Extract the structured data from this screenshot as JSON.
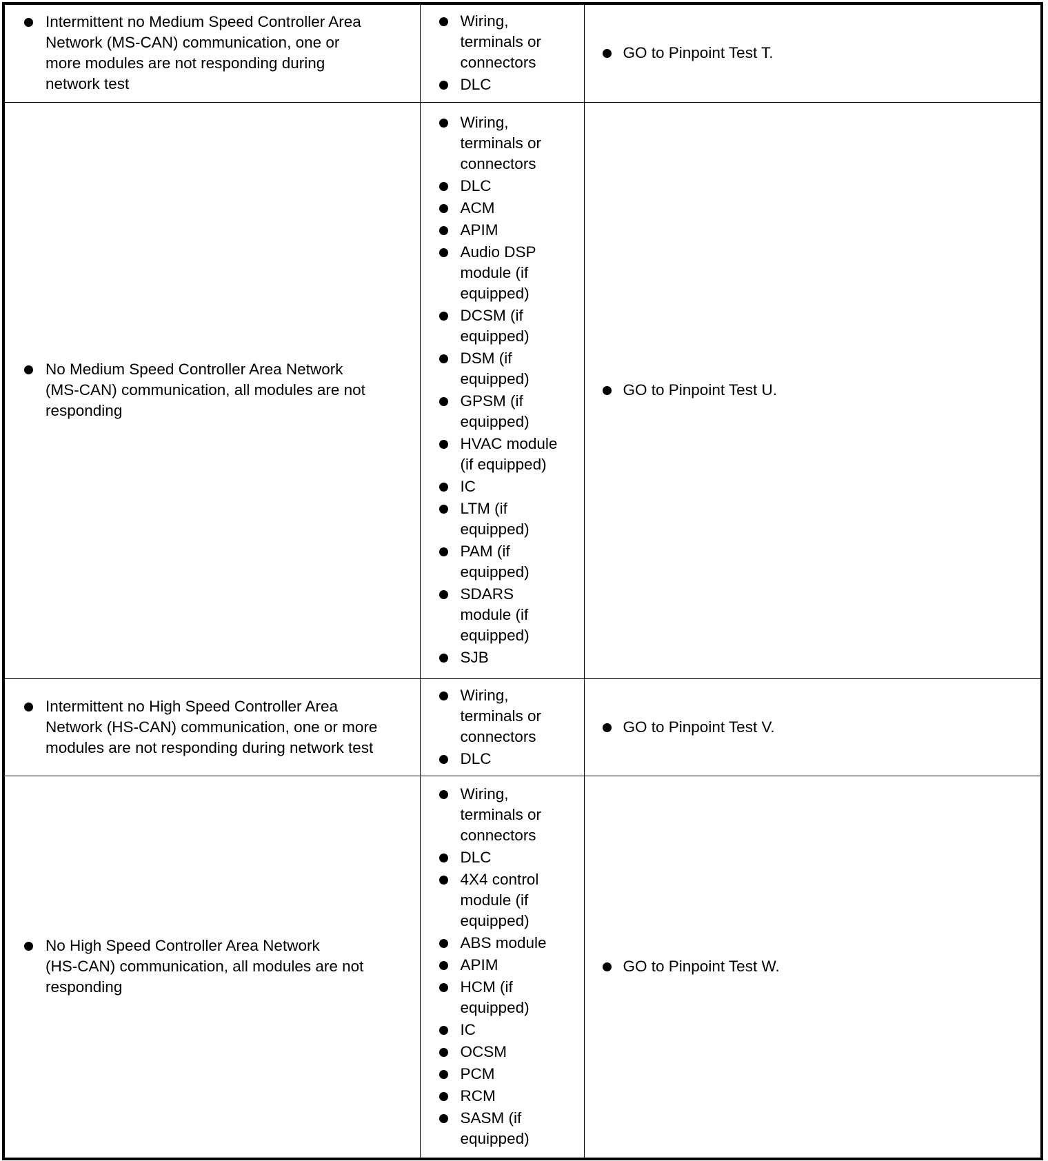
{
  "rows": [
    {
      "condition": "Intermittent no Medium Speed Controller Area\nNetwork (MS-CAN) communication, one or\nmore modules are not responding during\nnetwork test",
      "sources": [
        "Wiring,\nterminals or\nconnectors",
        "DLC"
      ],
      "action": "GO to Pinpoint Test T."
    },
    {
      "condition": "No Medium Speed Controller Area Network\n(MS-CAN) communication, all modules are not\nresponding",
      "sources": [
        "Wiring,\nterminals or\nconnectors",
        "DLC",
        "ACM",
        "APIM",
        "Audio DSP\nmodule (if\nequipped)",
        "DCSM (if\nequipped)",
        "DSM (if\nequipped)",
        "GPSM (if\nequipped)",
        "HVAC module\n(if equipped)",
        "IC",
        "LTM (if\nequipped)",
        "PAM (if\nequipped)",
        "SDARS\nmodule (if\nequipped)",
        "SJB"
      ],
      "action": "GO to Pinpoint Test U."
    },
    {
      "condition": "Intermittent no High Speed Controller Area\nNetwork (HS-CAN) communication, one or more\nmodules are not responding during network test",
      "sources": [
        "Wiring,\nterminals or\nconnectors",
        "DLC"
      ],
      "action": "GO to Pinpoint Test V."
    },
    {
      "condition": "No High Speed Controller Area Network\n(HS-CAN) communication, all modules are not\nresponding",
      "sources": [
        "Wiring,\nterminals or\nconnectors",
        "DLC",
        "4X4 control\nmodule (if\nequipped)",
        "ABS module",
        "APIM",
        "HCM (if\nequipped)",
        "IC",
        "OCSM",
        "PCM",
        "RCM",
        "SASM (if\nequipped)"
      ],
      "action": "GO to Pinpoint Test W."
    }
  ]
}
